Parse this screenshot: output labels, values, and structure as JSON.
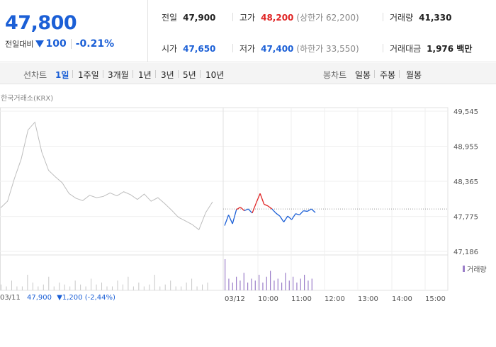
{
  "quote": {
    "price": "47,800",
    "change_label": "전일대비",
    "change_value": "100",
    "change_rate": "-0.21%"
  },
  "stats": {
    "prev_close": {
      "label": "전일",
      "value": "47,900"
    },
    "high": {
      "label": "고가",
      "value": "48,200",
      "sub": "(상한가 62,200)"
    },
    "volume": {
      "label": "거래량",
      "value": "41,330"
    },
    "open": {
      "label": "시가",
      "value": "47,650"
    },
    "low": {
      "label": "저가",
      "value": "47,400",
      "sub": "(하한가 33,550)"
    },
    "trade_value": {
      "label": "거래대금",
      "value": "1,976 백만"
    }
  },
  "tabs": {
    "line_label": "선차트",
    "line_items": [
      "1일",
      "1주일",
      "3개월",
      "1년",
      "3년",
      "5년",
      "10년"
    ],
    "active_line": "1일",
    "candle_label": "봉차트",
    "candle_items": [
      "일봉",
      "주봉",
      "월봉"
    ]
  },
  "chart": {
    "source_label": "한국거래소(KRX)",
    "volume_legend": "거래량",
    "footer_date": "03/11",
    "footer_price": "47,900",
    "footer_change": "▼1,200 (-2,44%)"
  },
  "colors": {
    "up": "#e02424",
    "down": "#1b5fd6",
    "prev_day_line": "#bdbdbd",
    "volume": "#9b7ec9"
  },
  "chart_data": {
    "type": "line",
    "y_ticks": [
      "49,545",
      "48,955",
      "48,365",
      "47,775",
      "47,186"
    ],
    "ylim": [
      47186,
      49545
    ],
    "x_ticks": [
      "03/11",
      "03/12",
      "10:00",
      "11:00",
      "12:00",
      "13:00",
      "14:00",
      "15:00"
    ],
    "reference_price": 47900,
    "series": [
      {
        "values": [
          47920,
          48030,
          48410,
          48740,
          49230,
          49360,
          48860,
          48550,
          48440,
          48340,
          48160,
          48080,
          48040,
          48130,
          48090,
          48110,
          48170,
          48120,
          48190,
          48140,
          48060,
          48150,
          48030,
          48090,
          47990,
          47880,
          47760,
          47700,
          47640,
          47550,
          47840,
          48020
        ]
      },
      {
        "values": [
          47620,
          47800,
          47650,
          47890,
          47930,
          47870,
          47900,
          47830,
          48000,
          48160,
          47980,
          47950,
          47900,
          47830,
          47780,
          47680,
          47780,
          47720,
          47820,
          47800,
          47870,
          47860,
          47900,
          47840
        ]
      }
    ],
    "volume": {
      "prev_day": [
        3,
        2,
        5,
        2,
        2,
        8,
        4,
        2,
        3,
        7,
        2,
        4,
        3,
        2,
        5,
        3,
        2,
        6,
        3,
        4,
        2,
        2,
        5,
        3,
        7,
        2,
        4,
        2,
        3,
        8,
        2,
        3,
        5,
        2,
        2,
        4,
        6,
        2,
        3,
        4
      ],
      "today": [
        16,
        6,
        4,
        7,
        5,
        9,
        4,
        6,
        5,
        8,
        4,
        7,
        10,
        5,
        6,
        4,
        9,
        5,
        7,
        4,
        6,
        8,
        5,
        6
      ]
    }
  }
}
